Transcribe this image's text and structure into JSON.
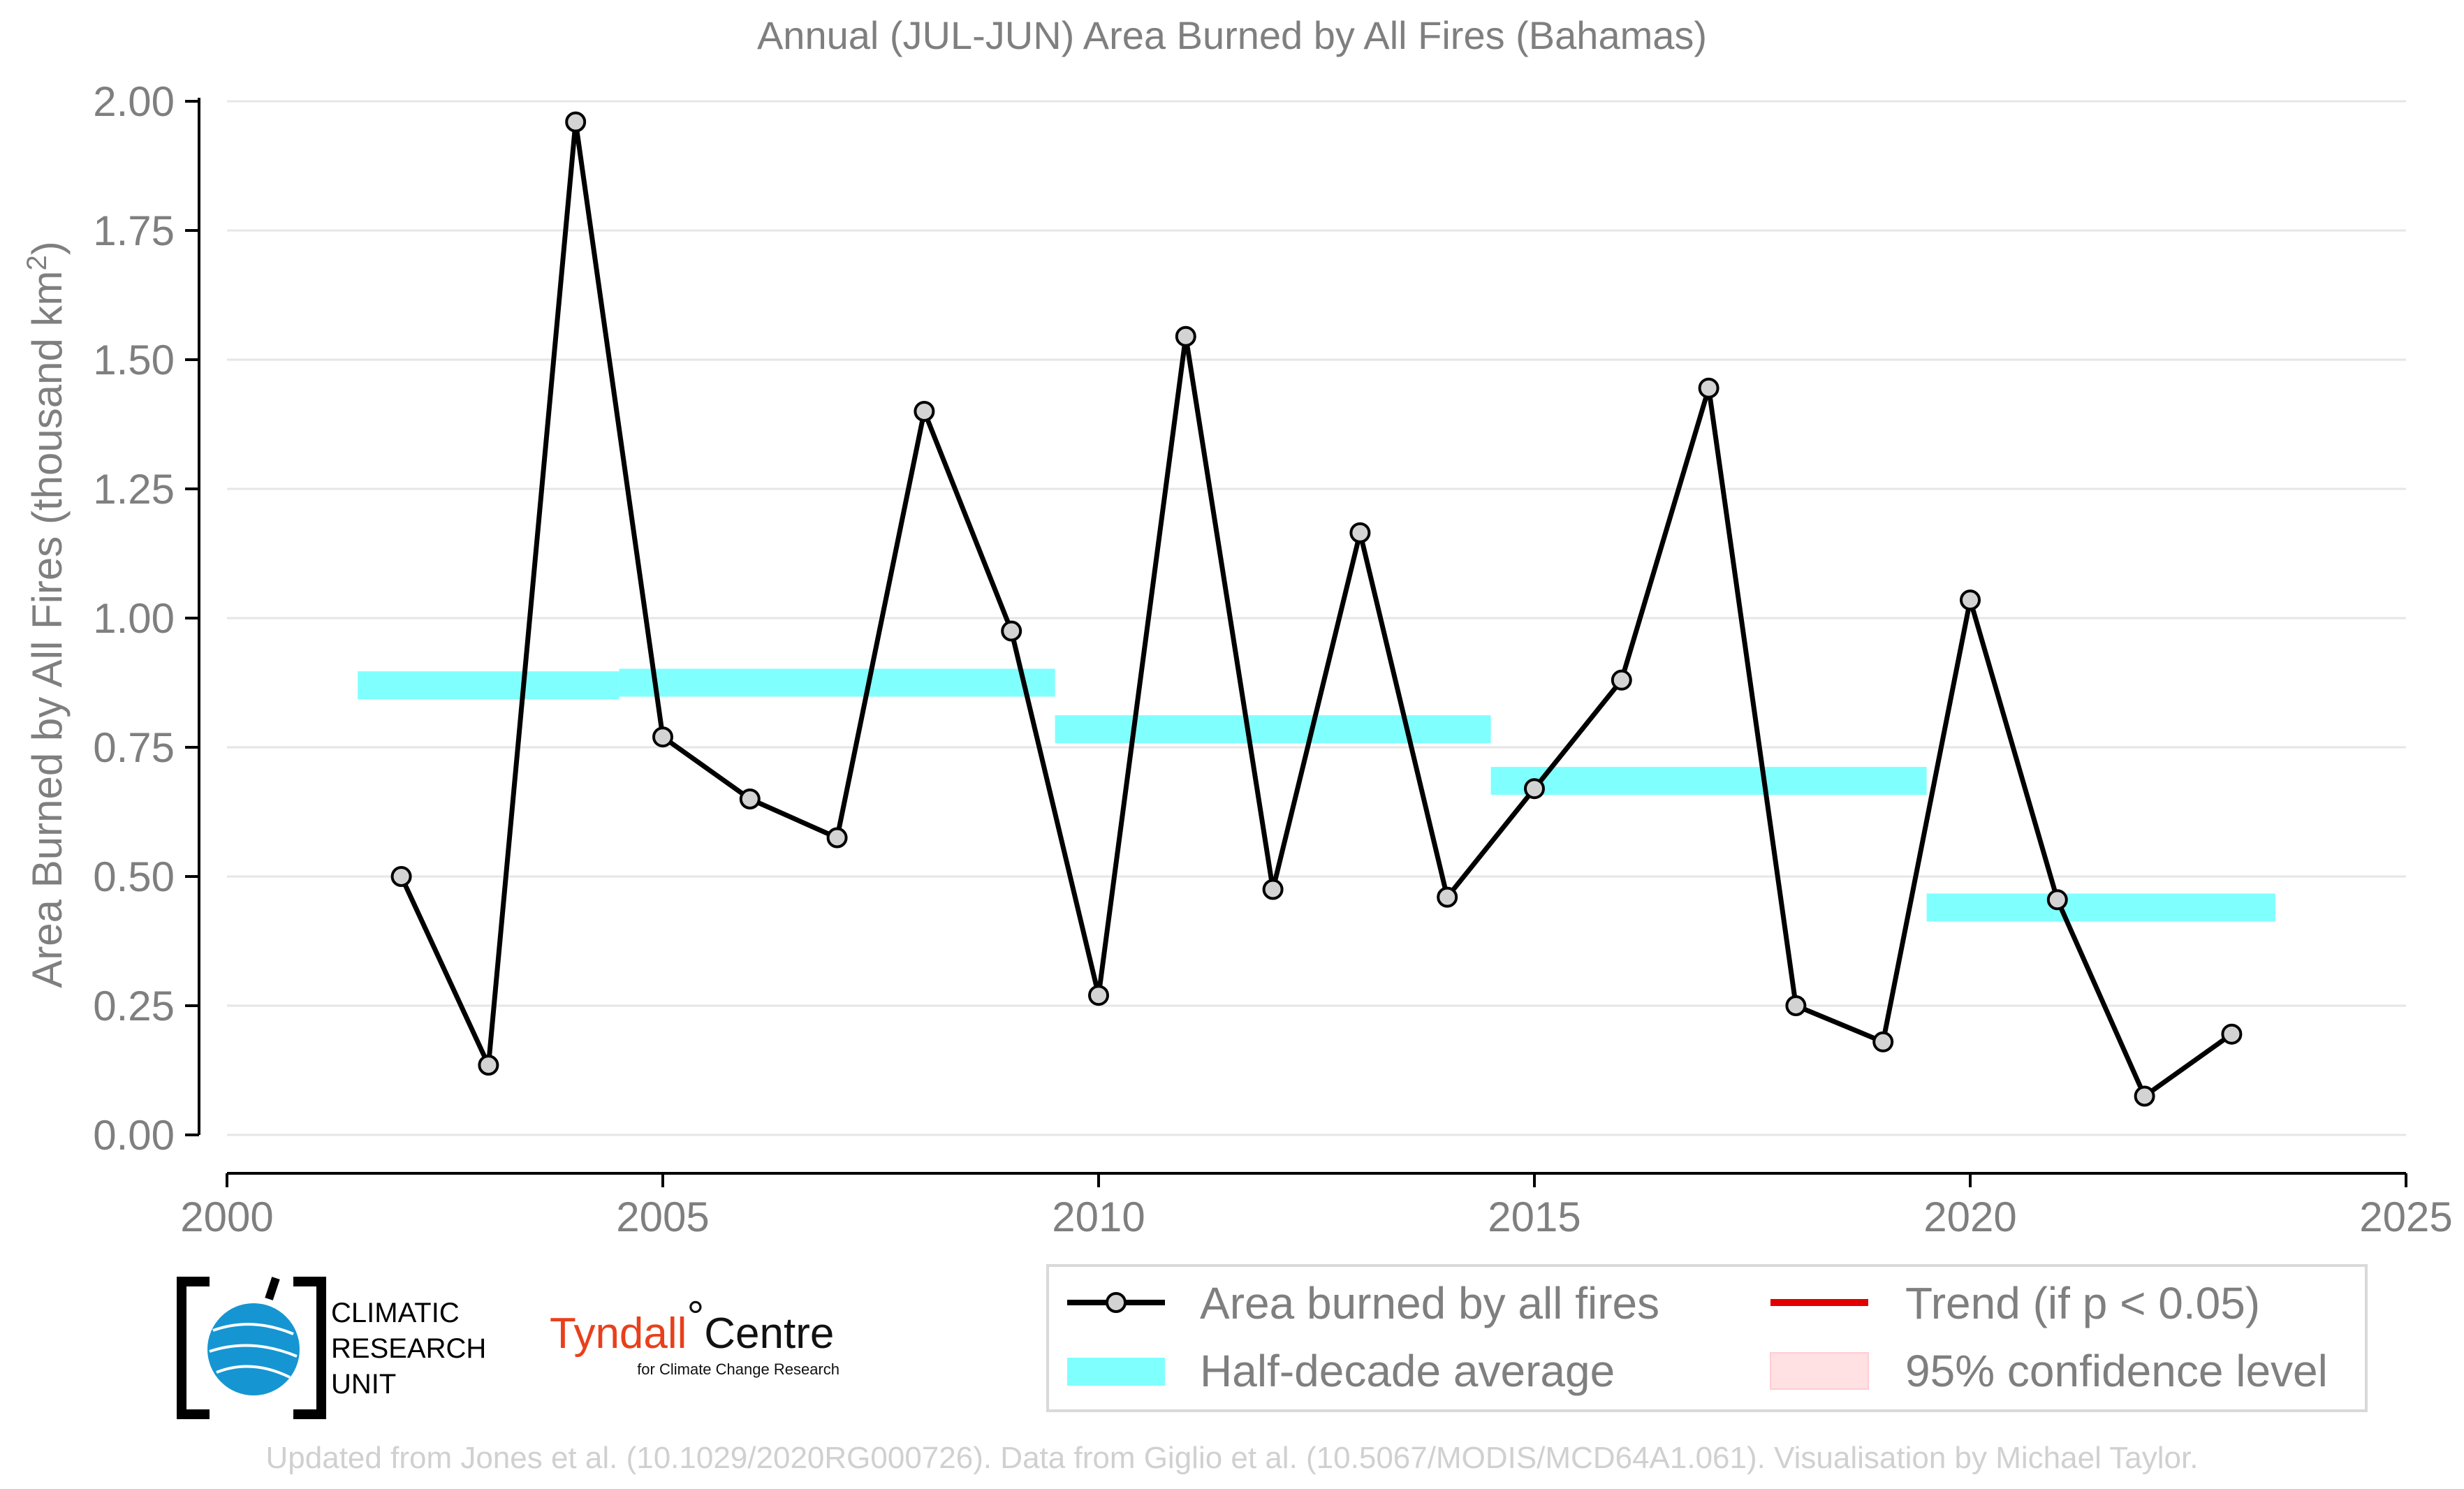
{
  "chart_data": {
    "type": "line",
    "title": "Annual (JUL-JUN) Area Burned by All Fires (Bahamas)",
    "xlabel": "",
    "ylabel": "Area Burned by All Fires (thousand km",
    "ylabel_sup": "2",
    "ylabel_close": ")",
    "xlim": [
      2000,
      2025
    ],
    "ylim": [
      0,
      2
    ],
    "x_ticks": [
      2000,
      2005,
      2010,
      2015,
      2020,
      2025
    ],
    "x_tick_labels": [
      "2000",
      "2005",
      "2010",
      "2015",
      "2020",
      "2025"
    ],
    "y_ticks": [
      0,
      0.25,
      0.5,
      0.75,
      1,
      1.25,
      1.5,
      1.75,
      2
    ],
    "y_tick_labels": [
      "0.00",
      "0.25",
      "0.50",
      "0.75",
      "1.00",
      "1.25",
      "1.50",
      "1.75",
      "2.00"
    ],
    "grid": "horizontal",
    "series": [
      {
        "name": "Area burned by all fires",
        "color": "#000000",
        "marker_fill": "#d3d3d3",
        "x": [
          2002,
          2003,
          2004,
          2005,
          2006,
          2007,
          2008,
          2009,
          2010,
          2011,
          2012,
          2013,
          2014,
          2015,
          2016,
          2017,
          2018,
          2019,
          2020,
          2021,
          2022,
          2023
        ],
        "y": [
          0.5,
          0.135,
          1.96,
          0.77,
          0.65,
          0.575,
          1.4,
          0.975,
          0.27,
          1.545,
          0.475,
          1.165,
          0.46,
          0.67,
          0.88,
          1.445,
          0.25,
          0.18,
          1.035,
          0.455,
          0.075,
          0.195
        ]
      }
    ],
    "half_decade_average": {
      "name": "Half-decade average",
      "color": "#80ffff",
      "segments": [
        {
          "x_start": 2001.5,
          "x_end": 2004.5,
          "y": 0.87
        },
        {
          "x_start": 2004.5,
          "x_end": 2009.5,
          "y": 0.875
        },
        {
          "x_start": 2009.5,
          "x_end": 2014.5,
          "y": 0.785
        },
        {
          "x_start": 2014.5,
          "x_end": 2019.5,
          "y": 0.685
        },
        {
          "x_start": 2019.5,
          "x_end": 2023.5,
          "y": 0.44
        }
      ]
    },
    "legend": {
      "placement": "bottom-right",
      "items": [
        {
          "label": "Area burned by all fires",
          "kind": "line-marker",
          "color": "#000000"
        },
        {
          "label": "Half-decade average",
          "kind": "thick-bar",
          "color": "#80ffff"
        },
        {
          "label": "Trend (if p < 0.05)",
          "kind": "line",
          "color": "#e00000"
        },
        {
          "label": "95% confidence level",
          "kind": "patch",
          "color": "#ffe0e3"
        }
      ]
    }
  },
  "logos": {
    "cru": {
      "lines": [
        "CLIMATIC",
        "RESEARCH",
        "UNIT"
      ]
    },
    "tyndall": {
      "main": "Tyndall",
      "degree": "°",
      "centre": "Centre",
      "sub": "for Climate Change Research"
    }
  },
  "footer": "Updated from Jones et al. (10.1029/2020RG000726). Data from Giglio et al. (10.5067/MODIS/MCD64A1.061). Visualisation by Michael Taylor."
}
